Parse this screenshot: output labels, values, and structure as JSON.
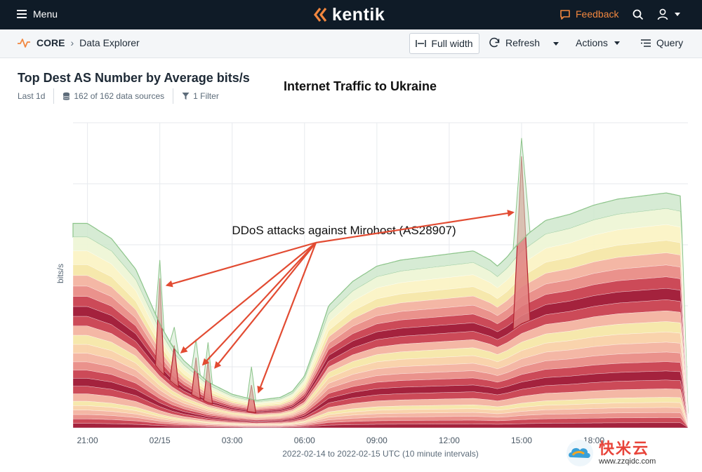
{
  "topbar": {
    "menu_label": "Menu",
    "brand": "kentik",
    "feedback_label": "Feedback"
  },
  "subbar": {
    "section": "CORE",
    "page": "Data Explorer",
    "full_width_label": "Full width",
    "refresh_label": "Refresh",
    "actions_label": "Actions",
    "query_label": "Query"
  },
  "query": {
    "title": "Top Dest AS Number by Average bits/s",
    "time_range": "Last 1d",
    "data_sources": "162 of 162 data sources",
    "filters": "1 Filter"
  },
  "annotation": {
    "title": "Internet Traffic to Ukraine",
    "callout": "DDoS attacks against Mirohost (AS28907)"
  },
  "chart_data": {
    "type": "area",
    "stacked": true,
    "ylabel": "bits/s",
    "xlabel": "2022-02-14 to 2022-02-15 UTC (10 minute intervals)",
    "x_ticks": [
      "21:00",
      "02/15",
      "03:00",
      "06:00",
      "09:00",
      "12:00",
      "15:00",
      "18:00"
    ],
    "x_range_hours": [
      -3.6,
      21.9
    ],
    "y_tick_labels_visible": false,
    "grid": true,
    "total_profile": {
      "hour": [
        -3.6,
        -3.0,
        -2.0,
        -1.0,
        0.0,
        0.5,
        1.0,
        2.0,
        3.0,
        4.0,
        5.0,
        5.5,
        6.0,
        6.5,
        7.0,
        8.0,
        9.0,
        10.0,
        11.0,
        12.0,
        13.0,
        13.7,
        14.0,
        14.4,
        15.0,
        15.5,
        16.0,
        17.0,
        18.0,
        19.0,
        20.0,
        21.0,
        21.6,
        21.9
      ],
      "relative_value": [
        0.67,
        0.67,
        0.62,
        0.52,
        0.34,
        0.27,
        0.22,
        0.15,
        0.11,
        0.09,
        0.1,
        0.12,
        0.17,
        0.28,
        0.4,
        0.48,
        0.53,
        0.55,
        0.56,
        0.57,
        0.58,
        0.55,
        0.53,
        0.56,
        0.62,
        0.65,
        0.68,
        0.7,
        0.73,
        0.75,
        0.76,
        0.77,
        0.76,
        0.05
      ]
    },
    "spikes": [
      {
        "hour": 0.0,
        "relative_peak": 0.49
      },
      {
        "hour": 0.6,
        "relative_peak": 0.27
      },
      {
        "hour": 1.5,
        "relative_peak": 0.23
      },
      {
        "hour": 2.0,
        "relative_peak": 0.22
      },
      {
        "hour": 3.8,
        "relative_peak": 0.14
      },
      {
        "hour": 15.0,
        "relative_peak": 0.89
      }
    ],
    "layer_count": 24,
    "colors": {
      "top_layer": "#cfe7cc",
      "mid_layers": [
        "#f6e7a8",
        "#f9d1a8",
        "#f3b3a0",
        "#e98c86",
        "#c9404f",
        "#9f1633"
      ],
      "attack_layer": "#e07f7f",
      "arrow": "#e24b32"
    }
  },
  "watermark": {
    "cn": "快米云",
    "url": "www.zzqidc.com"
  }
}
